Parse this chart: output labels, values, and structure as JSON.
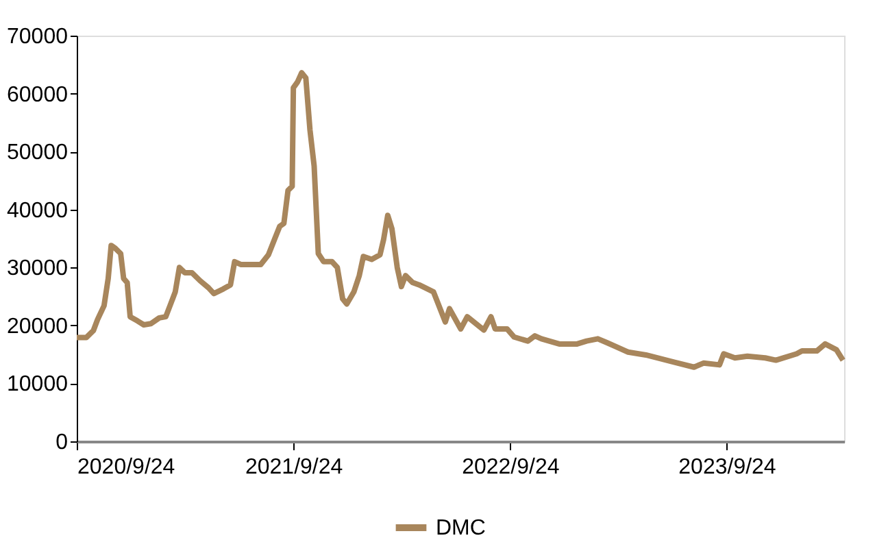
{
  "chart_data": {
    "type": "line",
    "legend": "bottom",
    "grid": false,
    "xlim": [
      "2020-09-24",
      "2024-04-09"
    ],
    "xticks": [
      {
        "value": "2020-09-24",
        "label": "2020/9/24"
      },
      {
        "value": "2021-09-24",
        "label": "2021/9/24"
      },
      {
        "value": "2022-09-24",
        "label": "2022/9/24"
      },
      {
        "value": "2023-09-24",
        "label": "2023/9/24"
      }
    ],
    "ylim": [
      0,
      70000
    ],
    "yticks": [
      0,
      10000,
      20000,
      30000,
      40000,
      50000,
      60000,
      70000
    ],
    "x": [
      "2020-09-24",
      "2020-10-10",
      "2020-10-22",
      "2020-10-29",
      "2020-11-09",
      "2020-11-16",
      "2020-11-21",
      "2020-11-28",
      "2020-12-07",
      "2020-12-12",
      "2020-12-18",
      "2020-12-23",
      "2021-01-04",
      "2021-01-15",
      "2021-01-27",
      "2021-02-10",
      "2021-02-21",
      "2021-03-02",
      "2021-03-09",
      "2021-03-16",
      "2021-03-25",
      "2021-04-06",
      "2021-04-20",
      "2021-05-04",
      "2021-05-13",
      "2021-05-29",
      "2021-06-10",
      "2021-06-17",
      "2021-06-28",
      "2021-07-31",
      "2021-08-13",
      "2021-08-23",
      "2021-09-01",
      "2021-09-08",
      "2021-09-15",
      "2021-09-22",
      "2021-09-24",
      "2021-10-01",
      "2021-10-08",
      "2021-10-15",
      "2021-10-22",
      "2021-10-29",
      "2021-11-05",
      "2021-11-14",
      "2021-11-28",
      "2021-12-07",
      "2021-12-16",
      "2021-12-23",
      "2022-01-04",
      "2022-01-13",
      "2022-01-20",
      "2022-02-03",
      "2022-02-17",
      "2022-02-23",
      "2022-03-02",
      "2022-03-09",
      "2022-03-18",
      "2022-03-25",
      "2022-04-01",
      "2022-04-13",
      "2022-04-24",
      "2022-05-18",
      "2022-06-07",
      "2022-06-14",
      "2022-07-03",
      "2022-07-14",
      "2022-08-11",
      "2022-08-23",
      "2022-08-30",
      "2022-09-19",
      "2022-10-01",
      "2022-10-24",
      "2022-11-05",
      "2022-11-16",
      "2022-12-16",
      "2023-01-15",
      "2023-01-31",
      "2023-02-19",
      "2023-03-07",
      "2023-04-11",
      "2023-05-11",
      "2023-06-26",
      "2023-07-31",
      "2023-08-16",
      "2023-09-12",
      "2023-09-19",
      "2023-10-08",
      "2023-10-29",
      "2023-11-28",
      "2023-12-16",
      "2024-01-20",
      "2024-01-29",
      "2024-02-23",
      "2024-03-08",
      "2024-03-27",
      "2024-04-07"
    ],
    "series": [
      {
        "name": "DMC",
        "color": "#a8865c",
        "values": [
          17900,
          17900,
          19100,
          21000,
          23400,
          28100,
          33800,
          33300,
          32400,
          28100,
          27400,
          21500,
          20800,
          20100,
          20300,
          21300,
          21500,
          23900,
          25800,
          30000,
          29100,
          29100,
          27700,
          26500,
          25500,
          26300,
          27000,
          31000,
          30500,
          30500,
          32200,
          34800,
          37100,
          37600,
          43300,
          44000,
          61000,
          62000,
          63600,
          62700,
          53700,
          47500,
          32400,
          31000,
          31000,
          30000,
          24600,
          23700,
          25800,
          28600,
          31900,
          31400,
          32200,
          34800,
          39000,
          36700,
          30000,
          26700,
          28600,
          27400,
          27000,
          25800,
          20600,
          22900,
          19400,
          21500,
          19200,
          21500,
          19400,
          19400,
          18000,
          17300,
          18200,
          17700,
          16800,
          16800,
          17300,
          17700,
          17000,
          15400,
          14900,
          13700,
          12800,
          13500,
          13200,
          15100,
          14400,
          14700,
          14400,
          14000,
          15100,
          15600,
          15600,
          16800,
          15800,
          14000
        ]
      }
    ]
  }
}
